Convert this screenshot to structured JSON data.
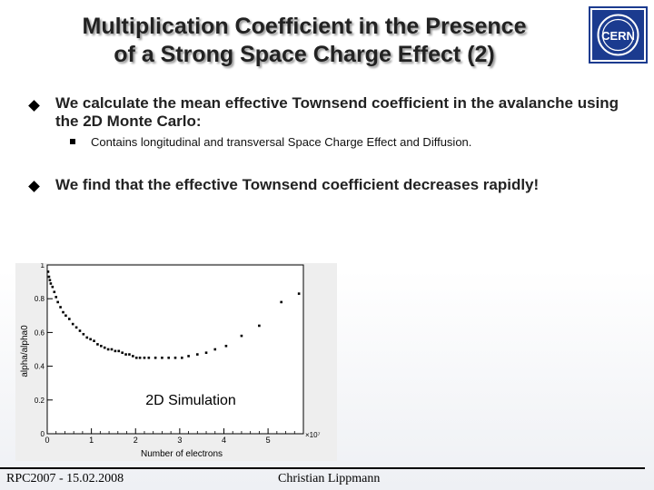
{
  "slide": {
    "title_line1": "Multiplication Coefficient in the Presence",
    "title_line2": "of a Strong Space Charge Effect (2)",
    "bullet1": "We calculate the mean effective Townsend coefficient in the avalanche using the 2D Monte Carlo:",
    "sub_bullet1": "Contains longitudinal and transversal Space Charge Effect and Diffusion.",
    "bullet2": "We find that the effective Townsend coefficient decreases rapidly!",
    "logo_text": "CERN",
    "footer_left": "RPC2007 - 15.02.2008",
    "footer_center": "Christian Lippmann",
    "colors": {
      "logo_blue": "#1b3b8f",
      "text": "#222222"
    }
  },
  "chart_data": {
    "type": "scatter",
    "title": "",
    "annotation": "2D Simulation",
    "xlabel": "Number of electrons",
    "ylabel": "alpha/alpha0",
    "x_multiplier": "×10⁷",
    "xlim": [
      0,
      5.8
    ],
    "ylim": [
      0,
      1.0
    ],
    "x_ticks": [
      0,
      1,
      2,
      3,
      4,
      5
    ],
    "y_ticks": [
      0,
      0.2,
      0.4,
      0.6,
      0.8,
      1
    ],
    "points": [
      [
        0.02,
        0.96
      ],
      [
        0.04,
        0.93
      ],
      [
        0.06,
        0.91
      ],
      [
        0.08,
        0.89
      ],
      [
        0.12,
        0.87
      ],
      [
        0.16,
        0.84
      ],
      [
        0.2,
        0.81
      ],
      [
        0.24,
        0.78
      ],
      [
        0.3,
        0.75
      ],
      [
        0.36,
        0.72
      ],
      [
        0.42,
        0.7
      ],
      [
        0.5,
        0.68
      ],
      [
        0.58,
        0.65
      ],
      [
        0.66,
        0.63
      ],
      [
        0.74,
        0.61
      ],
      [
        0.82,
        0.59
      ],
      [
        0.9,
        0.57
      ],
      [
        0.98,
        0.56
      ],
      [
        1.06,
        0.55
      ],
      [
        1.14,
        0.53
      ],
      [
        1.22,
        0.52
      ],
      [
        1.3,
        0.51
      ],
      [
        1.38,
        0.5
      ],
      [
        1.46,
        0.5
      ],
      [
        1.54,
        0.49
      ],
      [
        1.62,
        0.49
      ],
      [
        1.7,
        0.48
      ],
      [
        1.78,
        0.47
      ],
      [
        1.86,
        0.47
      ],
      [
        1.94,
        0.46
      ],
      [
        2.02,
        0.45
      ],
      [
        2.1,
        0.45
      ],
      [
        2.2,
        0.45
      ],
      [
        2.3,
        0.45
      ],
      [
        2.45,
        0.45
      ],
      [
        2.6,
        0.45
      ],
      [
        2.75,
        0.45
      ],
      [
        2.9,
        0.45
      ],
      [
        3.05,
        0.45
      ],
      [
        3.2,
        0.46
      ],
      [
        3.4,
        0.47
      ],
      [
        3.6,
        0.48
      ],
      [
        3.8,
        0.5
      ],
      [
        4.05,
        0.52
      ],
      [
        4.4,
        0.58
      ],
      [
        4.8,
        0.64
      ],
      [
        5.3,
        0.78
      ],
      [
        5.7,
        0.83
      ]
    ]
  }
}
